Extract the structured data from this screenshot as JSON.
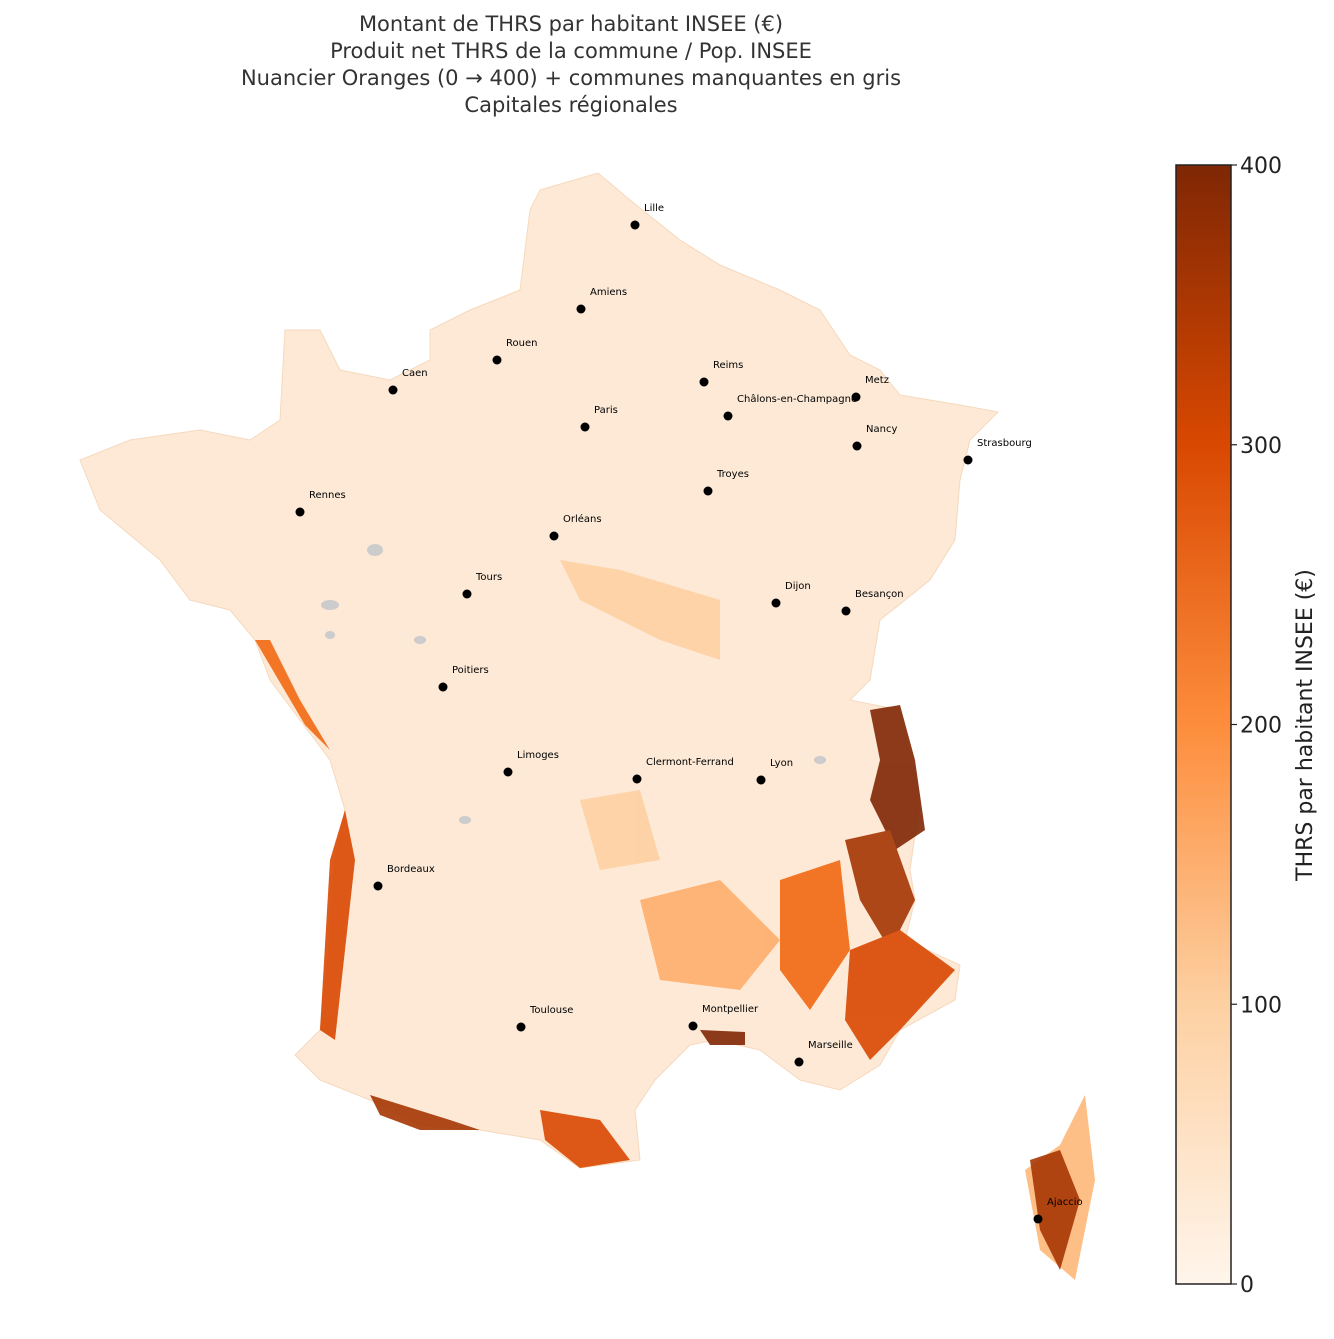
{
  "title": [
    "Montant de THRS par habitant INSEE (€)",
    "Produit net THRS de la commune / Pop. INSEE",
    "Nuancier Oranges (0 → 400) + communes manquantes en gris",
    "Capitales régionales"
  ],
  "cities": [
    {
      "name": "Lille"
    },
    {
      "name": "Amiens"
    },
    {
      "name": "Rouen"
    },
    {
      "name": "Caen"
    },
    {
      "name": "Reims"
    },
    {
      "name": "Châlons-en-Champagne"
    },
    {
      "name": "Metz"
    },
    {
      "name": "Paris"
    },
    {
      "name": "Nancy"
    },
    {
      "name": "Strasbourg"
    },
    {
      "name": "Troyes"
    },
    {
      "name": "Rennes"
    },
    {
      "name": "Orléans"
    },
    {
      "name": "Tours"
    },
    {
      "name": "Dijon"
    },
    {
      "name": "Besançon"
    },
    {
      "name": "Poitiers"
    },
    {
      "name": "Limoges"
    },
    {
      "name": "Clermont-Ferrand"
    },
    {
      "name": "Lyon"
    },
    {
      "name": "Bordeaux"
    },
    {
      "name": "Toulouse"
    },
    {
      "name": "Montpellier"
    },
    {
      "name": "Marseille"
    },
    {
      "name": "Ajaccio"
    }
  ],
  "colorbar": {
    "label": "THRS par habitant INSEE (€)",
    "lim": [
      0,
      400
    ],
    "ticks": [
      0,
      100,
      200,
      300,
      400
    ]
  }
}
